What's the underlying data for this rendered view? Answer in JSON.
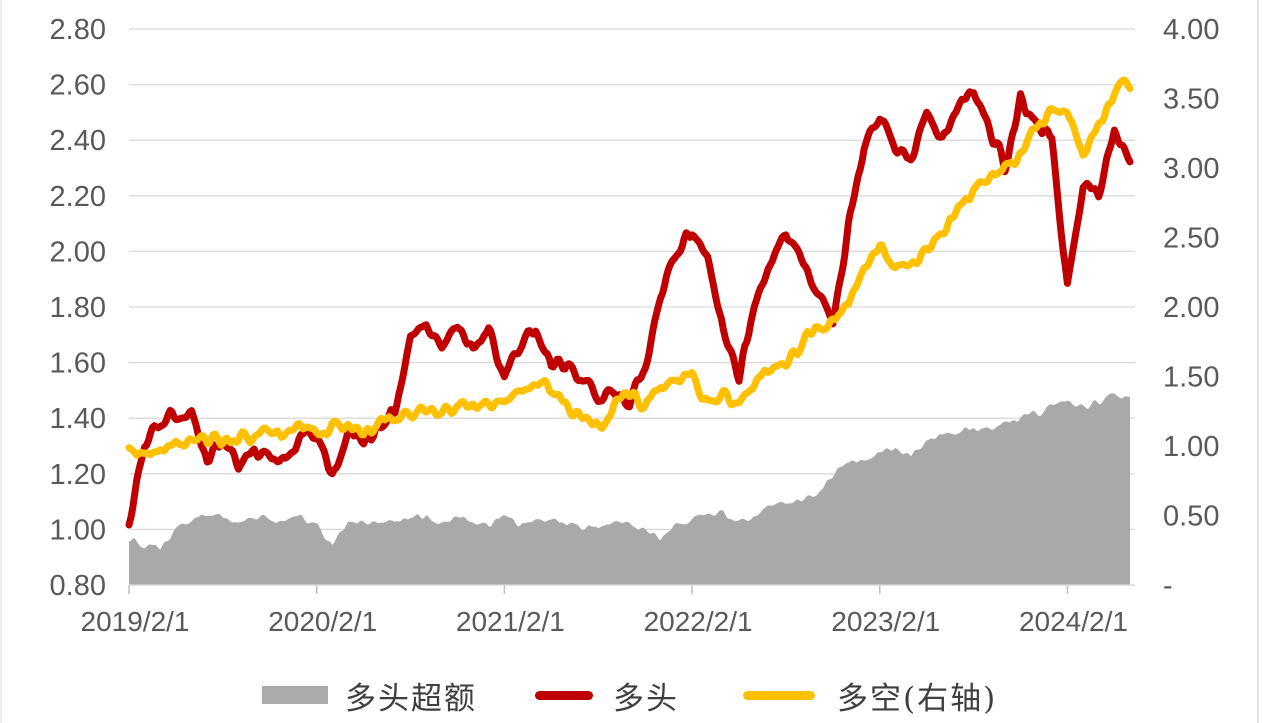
{
  "figure": {
    "background": "#ffffff",
    "grid_color": "#d9d9d9",
    "tick_color": "#bfbfbf",
    "axis_text_color": "#595959",
    "legend_text_color": "#3f3f3f"
  },
  "legend": {
    "items": [
      {
        "label": "多头超额",
        "swatch": "area",
        "color": "#ababab"
      },
      {
        "label": "多头",
        "swatch": "line",
        "color": "#c00000"
      },
      {
        "label": "多空(右轴)",
        "swatch": "line",
        "color": "#ffc000"
      }
    ]
  },
  "chart_data": {
    "type": "line",
    "title": "",
    "xlabel": "",
    "ylabel": "",
    "grid": "horizontal",
    "legend_position": "bottom",
    "left_axis": {
      "min": 0.8,
      "max": 2.8,
      "tick_labels": [
        "2.80",
        "2.60",
        "2.40",
        "2.20",
        "2.00",
        "1.80",
        "1.60",
        "1.40",
        "1.20",
        "1.00",
        "0.80"
      ]
    },
    "right_axis": {
      "min": 0.0,
      "max": 4.0,
      "tick_labels": [
        "4.00",
        "3.50",
        "3.00",
        "2.50",
        "2.00",
        "1.50",
        "1.00",
        "0.50",
        "-"
      ]
    },
    "x_ticks": [
      {
        "label": "2019/2/1",
        "month_index": 0
      },
      {
        "label": "2020/2/1",
        "month_index": 12
      },
      {
        "label": "2021/2/1",
        "month_index": 24
      },
      {
        "label": "2022/2/1",
        "month_index": 36
      },
      {
        "label": "2023/2/1",
        "month_index": 48
      },
      {
        "label": "2024/2/1",
        "month_index": 60
      }
    ],
    "months": [
      "2019/2",
      "2019/3",
      "2019/4",
      "2019/5",
      "2019/6",
      "2019/7",
      "2019/8",
      "2019/9",
      "2019/10",
      "2019/11",
      "2019/12",
      "2020/1",
      "2020/2",
      "2020/3",
      "2020/4",
      "2020/5",
      "2020/6",
      "2020/7",
      "2020/8",
      "2020/9",
      "2020/10",
      "2020/11",
      "2020/12",
      "2021/1",
      "2021/2",
      "2021/3",
      "2021/4",
      "2021/5",
      "2021/6",
      "2021/7",
      "2021/8",
      "2021/9",
      "2021/10",
      "2021/11",
      "2021/12",
      "2022/1",
      "2022/2",
      "2022/3",
      "2022/4",
      "2022/5",
      "2022/6",
      "2022/7",
      "2022/8",
      "2022/9",
      "2022/10",
      "2022/11",
      "2022/12",
      "2023/1",
      "2023/2",
      "2023/3",
      "2023/4",
      "2023/5",
      "2023/6",
      "2023/7",
      "2023/8",
      "2023/9",
      "2023/10",
      "2023/11",
      "2023/12",
      "2024/1",
      "2024/2",
      "2024/3",
      "2024/4",
      "2024/5",
      "2024/6"
    ],
    "series": [
      {
        "name": "多头超额",
        "type": "area",
        "axis": "left",
        "color": "#a9a9a9",
        "values": [
          0.97,
          0.94,
          0.93,
          1.0,
          1.03,
          1.06,
          1.04,
          1.03,
          1.05,
          1.03,
          1.04,
          1.05,
          1.02,
          0.95,
          1.03,
          1.02,
          1.03,
          1.02,
          1.05,
          1.04,
          1.02,
          1.04,
          1.03,
          1.02,
          1.04,
          1.02,
          1.03,
          1.04,
          1.02,
          1.01,
          1.0,
          1.02,
          1.01,
          0.99,
          0.96,
          1.02,
          1.04,
          1.05,
          1.06,
          1.03,
          1.05,
          1.08,
          1.1,
          1.11,
          1.13,
          1.2,
          1.24,
          1.26,
          1.28,
          1.3,
          1.26,
          1.32,
          1.34,
          1.35,
          1.37,
          1.36,
          1.38,
          1.4,
          1.42,
          1.44,
          1.46,
          1.44,
          1.46,
          1.49,
          1.48
        ]
      },
      {
        "name": "多头",
        "type": "line",
        "axis": "left",
        "color": "#c00000",
        "values": [
          1.03,
          1.3,
          1.38,
          1.42,
          1.43,
          1.25,
          1.31,
          1.22,
          1.3,
          1.27,
          1.26,
          1.32,
          1.33,
          1.2,
          1.35,
          1.3,
          1.37,
          1.42,
          1.7,
          1.74,
          1.66,
          1.72,
          1.64,
          1.71,
          1.55,
          1.68,
          1.73,
          1.58,
          1.61,
          1.52,
          1.47,
          1.5,
          1.44,
          1.6,
          1.85,
          1.98,
          2.07,
          1.95,
          1.7,
          1.56,
          1.8,
          1.95,
          2.08,
          1.98,
          1.85,
          1.74,
          2.1,
          2.35,
          2.48,
          2.38,
          2.33,
          2.48,
          2.4,
          2.52,
          2.58,
          2.44,
          2.3,
          2.55,
          2.46,
          2.4,
          1.86,
          2.25,
          2.2,
          2.44,
          2.34
        ]
      },
      {
        "name": "多空(右轴)",
        "type": "line",
        "axis": "right",
        "color": "#ffc000",
        "values": [
          0.96,
          0.91,
          0.98,
          1.0,
          1.03,
          1.02,
          1.05,
          1.04,
          1.07,
          1.06,
          1.09,
          1.12,
          1.08,
          1.11,
          1.14,
          1.13,
          1.17,
          1.19,
          1.24,
          1.26,
          1.23,
          1.27,
          1.3,
          1.28,
          1.32,
          1.4,
          1.48,
          1.42,
          1.3,
          1.2,
          1.15,
          1.28,
          1.38,
          1.3,
          1.45,
          1.48,
          1.5,
          1.33,
          1.38,
          1.31,
          1.45,
          1.55,
          1.63,
          1.75,
          1.82,
          1.91,
          2.0,
          2.3,
          2.42,
          2.28,
          2.3,
          2.45,
          2.52,
          2.7,
          2.85,
          2.92,
          2.98,
          3.1,
          3.3,
          3.4,
          3.43,
          3.08,
          3.3,
          3.55,
          3.62
        ]
      }
    ]
  }
}
